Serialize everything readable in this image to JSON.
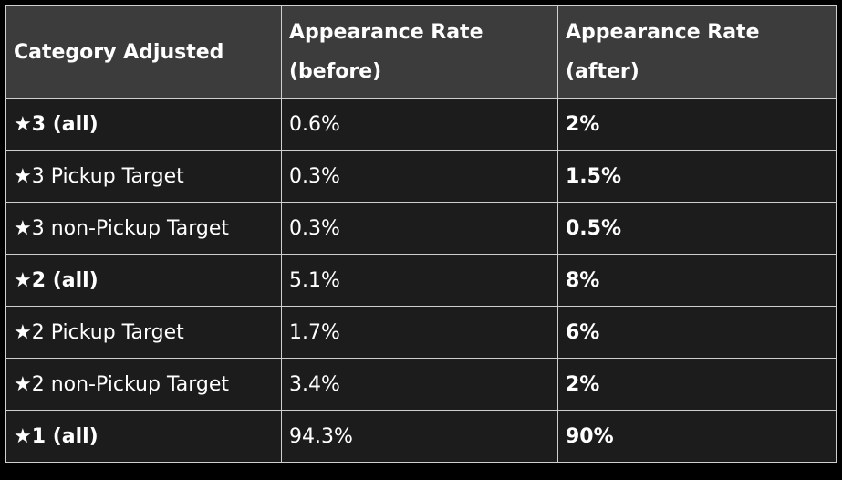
{
  "table": {
    "headers": [
      "Category Adjusted",
      "Appearance Rate (before)",
      "Appearance Rate (after)"
    ],
    "rows": [
      {
        "category": "★3 (all)",
        "before": "0.6%",
        "after": "2%",
        "bold": true
      },
      {
        "category": "★3 Pickup Target",
        "before": "0.3%",
        "after": "1.5%",
        "bold": false
      },
      {
        "category": "★3 non-Pickup Target",
        "before": "0.3%",
        "after": "0.5%",
        "bold": false
      },
      {
        "category": "★2 (all)",
        "before": "5.1%",
        "after": "8%",
        "bold": true
      },
      {
        "category": "★2 Pickup Target",
        "before": "1.7%",
        "after": "6%",
        "bold": false
      },
      {
        "category": "★2 non-Pickup Target",
        "before": "3.4%",
        "after": "2%",
        "bold": false
      },
      {
        "category": "★1 (all)",
        "before": "94.3%",
        "after": "90%",
        "bold": true
      }
    ]
  },
  "colors": {
    "page_background": "#000000",
    "header_background": "#3c3c3c",
    "row_background": "#1c1c1c",
    "border": "#cfcfcf",
    "text": "#ffffff"
  }
}
